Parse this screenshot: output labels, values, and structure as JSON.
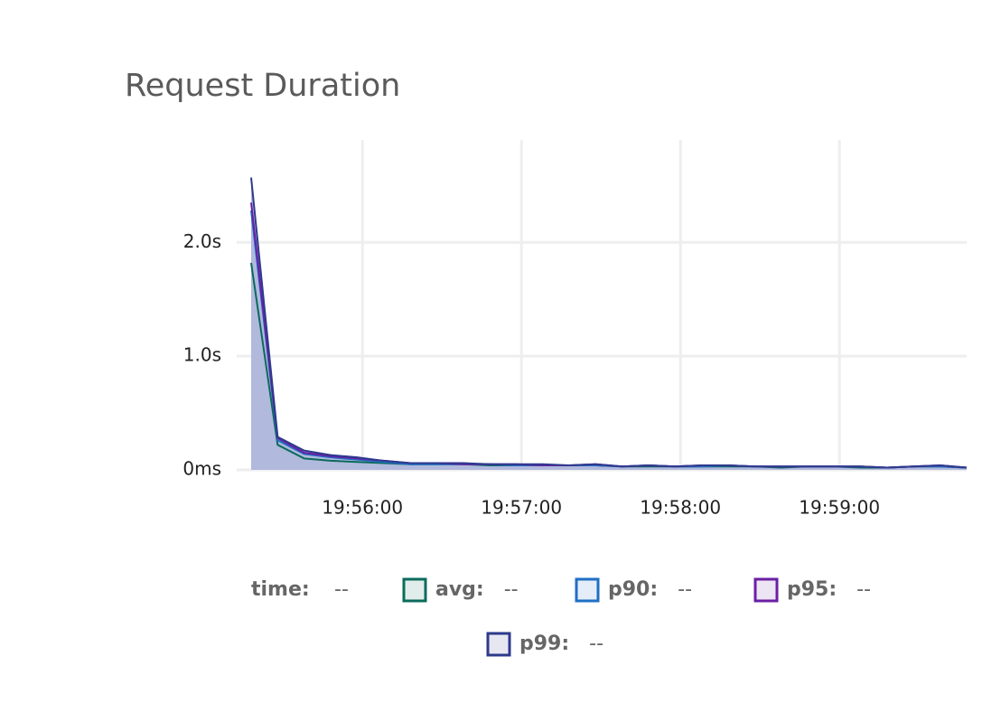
{
  "chart_data": {
    "type": "line",
    "title": "Request Duration",
    "x": [
      "19:55:18",
      "19:55:28",
      "19:55:38",
      "19:55:48",
      "19:55:58",
      "19:56:08",
      "19:56:18",
      "19:56:28",
      "19:56:38",
      "19:56:48",
      "19:56:58",
      "19:57:08",
      "19:57:18",
      "19:57:28",
      "19:57:38",
      "19:57:48",
      "19:57:58",
      "19:58:08",
      "19:58:18",
      "19:58:28",
      "19:58:38",
      "19:58:48",
      "19:58:58",
      "19:59:08",
      "19:59:18",
      "19:59:28",
      "19:59:38",
      "19:59:48"
    ],
    "xlim": [
      "19:55:18",
      "19:59:48"
    ],
    "xticks": [
      "19:56:00",
      "19:57:00",
      "19:58:00",
      "19:59:00"
    ],
    "ylim": [
      0,
      2.9
    ],
    "yticks": [
      {
        "value": 0,
        "label": "0ms"
      },
      {
        "value": 1,
        "label": "1.0s"
      },
      {
        "value": 2,
        "label": "2.0s"
      }
    ],
    "grid": true,
    "legend_time": "time:",
    "legend_values": [
      "--",
      "--",
      "--",
      "--",
      "--"
    ],
    "series": [
      {
        "name": "avg:",
        "color": "#0b6b5c",
        "values": [
          1.82,
          0.22,
          0.1,
          0.08,
          0.07,
          0.06,
          0.05,
          0.05,
          0.05,
          0.04,
          0.04,
          0.04,
          0.04,
          0.04,
          0.03,
          0.03,
          0.03,
          0.03,
          0.03,
          0.03,
          0.02,
          0.03,
          0.03,
          0.02,
          0.02,
          0.03,
          0.03,
          0.02
        ]
      },
      {
        "name": "p90:",
        "color": "#1f6fc5",
        "values": [
          2.28,
          0.26,
          0.14,
          0.11,
          0.09,
          0.07,
          0.05,
          0.05,
          0.05,
          0.05,
          0.04,
          0.04,
          0.04,
          0.04,
          0.03,
          0.04,
          0.03,
          0.03,
          0.04,
          0.03,
          0.03,
          0.03,
          0.03,
          0.03,
          0.02,
          0.03,
          0.03,
          0.02
        ]
      },
      {
        "name": "p95:",
        "color": "#6a1fa3",
        "values": [
          2.35,
          0.28,
          0.15,
          0.12,
          0.1,
          0.08,
          0.06,
          0.06,
          0.05,
          0.05,
          0.05,
          0.04,
          0.04,
          0.05,
          0.03,
          0.04,
          0.03,
          0.04,
          0.04,
          0.03,
          0.03,
          0.03,
          0.03,
          0.03,
          0.02,
          0.03,
          0.04,
          0.02
        ]
      },
      {
        "name": "p99:",
        "color": "#2e3a8c",
        "fill": "#b1b9dd",
        "values": [
          2.57,
          0.29,
          0.17,
          0.13,
          0.11,
          0.08,
          0.06,
          0.06,
          0.06,
          0.05,
          0.05,
          0.05,
          0.04,
          0.05,
          0.03,
          0.04,
          0.03,
          0.04,
          0.04,
          0.03,
          0.03,
          0.03,
          0.03,
          0.03,
          0.02,
          0.03,
          0.04,
          0.02
        ]
      }
    ]
  }
}
